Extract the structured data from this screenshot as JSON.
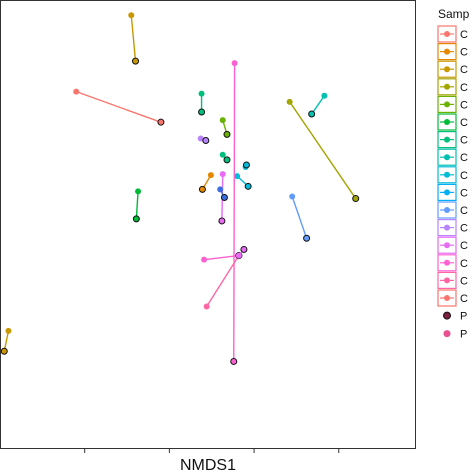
{
  "chart_data": {
    "type": "scatter",
    "xlabel": "NMDS1",
    "ylabel": "",
    "xlim": [
      -2.5,
      2.4
    ],
    "ylim": [
      -2.3,
      2.1
    ],
    "grid": false,
    "legend": {
      "title": "Samp",
      "position": "right",
      "entries": [
        {
          "label": "C",
          "color": "#F8766D"
        },
        {
          "label": "C",
          "color": "#E58700"
        },
        {
          "label": "C",
          "color": "#C99800"
        },
        {
          "label": "C",
          "color": "#A3A500"
        },
        {
          "label": "C",
          "color": "#6BB100"
        },
        {
          "label": "C",
          "color": "#00BA38"
        },
        {
          "label": "C",
          "color": "#00BF7D"
        },
        {
          "label": "C",
          "color": "#00C0AF"
        },
        {
          "label": "C",
          "color": "#00BCD8"
        },
        {
          "label": "C",
          "color": "#00B0F6"
        },
        {
          "label": "C",
          "color": "#619CFF"
        },
        {
          "label": "C",
          "color": "#B983FF"
        },
        {
          "label": "C",
          "color": "#E76BF3"
        },
        {
          "label": "C",
          "color": "#FD61D1"
        },
        {
          "label": "C",
          "color": "#FF67A4"
        },
        {
          "label": "C",
          "color": "#F8766D"
        }
      ],
      "shape_entries": [
        {
          "label": "P",
          "outlined": true
        },
        {
          "label": "P",
          "outlined": false
        }
      ]
    },
    "segments": [
      {
        "color": "#F8766D",
        "p1": [
          -1.6,
          1.2
        ],
        "p2": [
          -0.6,
          0.9
        ]
      },
      {
        "color": "#C99800",
        "p1": [
          -0.95,
          1.95
        ],
        "p2": [
          -0.9,
          1.5
        ]
      },
      {
        "color": "#C99800",
        "p1": [
          -2.4,
          -1.15
        ],
        "p2": [
          -2.45,
          -1.35
        ]
      },
      {
        "color": "#A3A500",
        "p1": [
          0.92,
          1.1
        ],
        "p2": [
          1.7,
          0.15
        ]
      },
      {
        "color": "#6BB100",
        "p1": [
          0.13,
          0.92
        ],
        "p2": [
          0.18,
          0.78
        ]
      },
      {
        "color": "#00BA38",
        "p1": [
          -0.87,
          0.22
        ],
        "p2": [
          -0.89,
          -0.05
        ]
      },
      {
        "color": "#00BF7D",
        "p1": [
          -0.12,
          1.18
        ],
        "p2": [
          -0.12,
          1.0
        ]
      },
      {
        "color": "#00BF7D",
        "p1": [
          0.13,
          0.58
        ],
        "p2": [
          0.18,
          0.53
        ]
      },
      {
        "color": "#00C0AF",
        "p1": [
          1.33,
          1.16
        ],
        "p2": [
          1.18,
          0.98
        ]
      },
      {
        "color": "#00BCD8",
        "p1": [
          0.3,
          0.37
        ],
        "p2": [
          0.43,
          0.27
        ]
      },
      {
        "color": "#00BCD8",
        "p1": [
          0.4,
          0.46
        ],
        "p2": [
          0.41,
          0.48
        ]
      },
      {
        "color": "#619CFF",
        "p1": [
          0.95,
          0.17
        ],
        "p2": [
          1.12,
          -0.24
        ]
      },
      {
        "color": "#B983FF",
        "p1": [
          -0.13,
          0.74
        ],
        "p2": [
          -0.07,
          0.72
        ]
      },
      {
        "color": "#E58700",
        "p1": [
          -0.01,
          0.38
        ],
        "p2": [
          -0.11,
          0.24
        ]
      },
      {
        "color": "#E76BF3",
        "p1": [
          0.13,
          0.39
        ],
        "p2": [
          0.12,
          -0.07
        ]
      },
      {
        "color": "#3C6FE0",
        "p1": [
          0.1,
          0.24
        ],
        "p2": [
          0.15,
          0.16
        ]
      },
      {
        "color": "#FD61D1",
        "p1": [
          0.27,
          1.48
        ],
        "p2": [
          0.26,
          -1.45
        ]
      },
      {
        "color": "#FD61D1",
        "p1": [
          -0.09,
          -0.45
        ],
        "p2": [
          0.32,
          -0.41
        ]
      },
      {
        "color": "#FF67A4",
        "p1": [
          -0.06,
          -0.91
        ],
        "p2": [
          0.32,
          -0.41
        ]
      },
      {
        "color": "#E76BF3",
        "p1": [
          0.32,
          -0.41
        ],
        "p2": [
          0.38,
          -0.35
        ]
      }
    ]
  }
}
